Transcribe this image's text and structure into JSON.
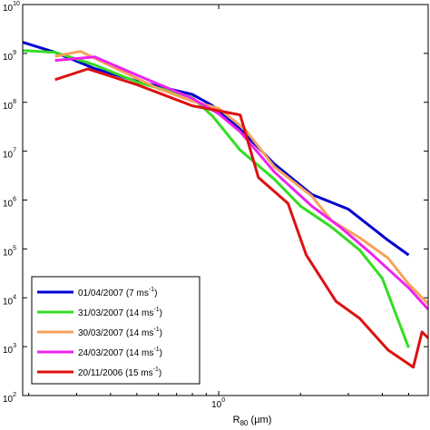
{
  "chart_data": {
    "type": "line",
    "xlabel": "R",
    "xlabel_sub": "80",
    "xlabel_unit": " (μm)",
    "x_scale": "log",
    "y_scale": "log",
    "xlim": [
      0.19,
      5.9
    ],
    "ylim": [
      100,
      10000000000
    ],
    "x_ticks": [
      {
        "value": 1,
        "base": "10",
        "exp": "0"
      }
    ],
    "y_ticks": [
      {
        "value": 100,
        "base": "10",
        "exp": "2"
      },
      {
        "value": 1000,
        "base": "10",
        "exp": "3"
      },
      {
        "value": 10000,
        "base": "10",
        "exp": "4"
      },
      {
        "value": 100000,
        "base": "10",
        "exp": "5"
      },
      {
        "value": 1000000,
        "base": "10",
        "exp": "6"
      },
      {
        "value": 10000000,
        "base": "10",
        "exp": "7"
      },
      {
        "value": 100000000,
        "base": "10",
        "exp": "8"
      },
      {
        "value": 1000000000,
        "base": "10",
        "exp": "9"
      },
      {
        "value": 10000000000,
        "base": "10",
        "exp": "10"
      }
    ],
    "legend_position": "bottom-left",
    "series": [
      {
        "name": "01/04/2007 (7 ms",
        "name_sup": "-1",
        "name_end": ")",
        "color": "#0000d0",
        "points": [
          [
            0.19,
            1700000000.0
          ],
          [
            0.25,
            1050000000.0
          ],
          [
            0.35,
            490000000.0
          ],
          [
            0.5,
            270000000.0
          ],
          [
            0.8,
            145000000.0
          ],
          [
            0.95,
            85000000.0
          ],
          [
            1.2,
            28000000.0
          ],
          [
            1.6,
            5500000.0
          ],
          [
            2.2,
            1300000.0
          ],
          [
            3.0,
            650000.0
          ],
          [
            4.2,
            150000.0
          ],
          [
            5.0,
            75000.0
          ]
        ]
      },
      {
        "name": "31/03/2007 (14 ms",
        "name_sup": "-1",
        "name_end": ")",
        "color": "#33dd22",
        "points": [
          [
            0.19,
            1150000000.0
          ],
          [
            0.25,
            1050000000.0
          ],
          [
            0.35,
            580000000.0
          ],
          [
            0.5,
            260000000.0
          ],
          [
            0.8,
            125000000.0
          ],
          [
            0.95,
            52000000.0
          ],
          [
            1.2,
            10500000.0
          ],
          [
            1.6,
            2700000.0
          ],
          [
            2.0,
            750000.0
          ],
          [
            2.6,
            280000.0
          ],
          [
            3.3,
            95000.0
          ],
          [
            4.0,
            25000.0
          ],
          [
            5.0,
            950.0
          ]
        ]
      },
      {
        "name": "30/03/2007 (14 ms",
        "name_sup": "-1",
        "name_end": ")",
        "color": "#f5a35a",
        "points": [
          [
            0.25,
            870000000.0
          ],
          [
            0.31,
            1100000000.0
          ],
          [
            0.42,
            490000000.0
          ],
          [
            0.6,
            190000000.0
          ],
          [
            0.8,
            105000000.0
          ],
          [
            1.0,
            75000000.0
          ],
          [
            1.25,
            28000000.0
          ],
          [
            1.6,
            4800000.0
          ],
          [
            2.2,
            1200000.0
          ],
          [
            2.6,
            380000.0
          ],
          [
            3.3,
            170000.0
          ],
          [
            4.2,
            65000.0
          ],
          [
            5.0,
            19000.0
          ],
          [
            5.9,
            7500.0
          ]
        ]
      },
      {
        "name": "24/03/2007 (14 ms",
        "name_sup": "-1",
        "name_end": ")",
        "color": "#ee22ee",
        "points": [
          [
            0.25,
            720000000.0
          ],
          [
            0.35,
            850000000.0
          ],
          [
            0.5,
            360000000.0
          ],
          [
            0.8,
            120000000.0
          ],
          [
            1.0,
            58000000.0
          ],
          [
            1.2,
            25000000.0
          ],
          [
            1.6,
            3800000.0
          ],
          [
            2.2,
            750000.0
          ],
          [
            2.8,
            280000.0
          ],
          [
            3.6,
            85000.0
          ],
          [
            5.0,
            16000.0
          ],
          [
            5.9,
            5800.0
          ]
        ]
      },
      {
        "name": "20/11/2006 (15 ms",
        "name_sup": "-1",
        "name_end": ")",
        "color": "#dd1111",
        "points": [
          [
            0.25,
            290000000.0
          ],
          [
            0.33,
            480000000.0
          ],
          [
            0.5,
            230000000.0
          ],
          [
            0.8,
            85000000.0
          ],
          [
            1.2,
            55000000.0
          ],
          [
            1.4,
            2900000.0
          ],
          [
            1.8,
            850000.0
          ],
          [
            2.1,
            75000.0
          ],
          [
            2.7,
            8500.0
          ],
          [
            3.3,
            3800.0
          ],
          [
            4.2,
            850.0
          ],
          [
            5.2,
            380.0
          ],
          [
            5.6,
            2000.0
          ],
          [
            5.9,
            1500.0
          ]
        ]
      }
    ]
  }
}
